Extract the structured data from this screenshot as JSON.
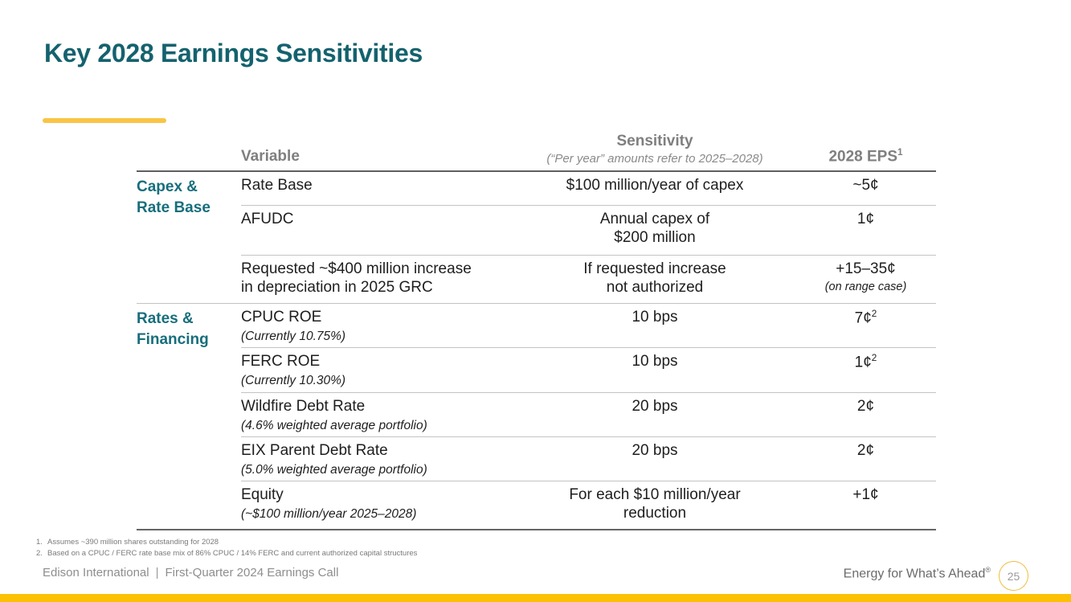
{
  "slide": {
    "title": "Key 2028 Earnings Sensitivities",
    "accent_color": "#F8C545",
    "teal_color": "#14626E",
    "bottom_bar_color": "#FCC105"
  },
  "table": {
    "header": {
      "variable": "Variable",
      "sensitivity": "Sensitivity",
      "sensitivity_note": "(“Per year” amounts refer to 2025–2028)",
      "eps": "2028 EPS",
      "eps_sup": "1"
    },
    "groups": [
      {
        "label": "Capex &\nRate Base",
        "rows": [
          {
            "variable": "Rate Base",
            "sensitivity": "$100 million/year of capex",
            "eps": "~5¢",
            "eps_sup": ""
          },
          {
            "variable": "AFUDC",
            "sensitivity": "Annual capex of\n$200 million",
            "eps": "1¢",
            "eps_sup": ""
          },
          {
            "variable": "Requested ~$400 million increase\nin depreciation in 2025 GRC",
            "sensitivity": "If requested increase\nnot authorized",
            "eps": "+15–35¢",
            "eps_sup": "",
            "eps_note": "(on range case)"
          }
        ]
      },
      {
        "label": "Rates &\nFinancing",
        "rows": [
          {
            "variable": "CPUC ROE",
            "variable_note": "(Currently 10.75%)",
            "sensitivity": "10 bps",
            "eps": "7¢",
            "eps_sup": "2"
          },
          {
            "variable": "FERC ROE",
            "variable_note": "(Currently 10.30%)",
            "sensitivity": "10 bps",
            "eps": "1¢",
            "eps_sup": "2"
          },
          {
            "variable": "Wildfire Debt Rate",
            "variable_note": "(4.6% weighted average portfolio)",
            "sensitivity": "20 bps",
            "eps": "2¢",
            "eps_sup": ""
          },
          {
            "variable": "EIX Parent Debt Rate",
            "variable_note": "(5.0% weighted average portfolio)",
            "sensitivity": "20 bps",
            "eps": "2¢",
            "eps_sup": ""
          },
          {
            "variable": "Equity",
            "variable_note": "(~$100 million/year 2025–2028)",
            "sensitivity": "For each $10 million/year\nreduction",
            "eps": "+1¢",
            "eps_sup": ""
          }
        ]
      }
    ]
  },
  "footnotes": [
    {
      "num": "1.",
      "text": "Assumes ~390 million shares outstanding for 2028"
    },
    {
      "num": "2.",
      "text": "Based on a CPUC / FERC rate base mix of 86% CPUC / 14% FERC and current authorized capital structures"
    }
  ],
  "footer": {
    "brand": "Edison International",
    "separator": "|",
    "deck_title": "First-Quarter 2024 Earnings Call",
    "tagline": "Energy for What’s Ahead",
    "tagline_mark": "®",
    "page_number": "25"
  }
}
